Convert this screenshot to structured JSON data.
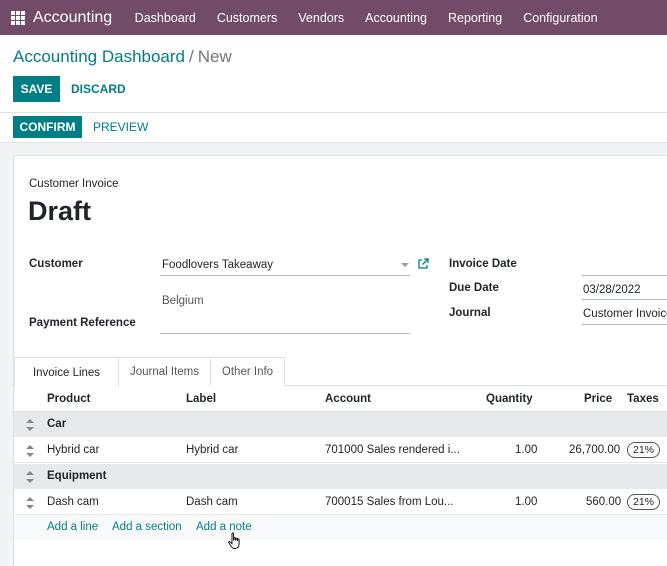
{
  "topbar": {
    "app_name": "Accounting",
    "nav": [
      "Dashboard",
      "Customers",
      "Vendors",
      "Accounting",
      "Reporting",
      "Configuration"
    ],
    "color": "#714B67"
  },
  "breadcrumb": {
    "parent": "Accounting Dashboard",
    "separator": "/",
    "current": "New"
  },
  "buttons": {
    "save": "SAVE",
    "discard": "DISCARD",
    "confirm": "CONFIRM",
    "preview": "PREVIEW"
  },
  "invoice": {
    "type": "Customer Invoice",
    "status": "Draft",
    "customer_label": "Customer",
    "customer": "Foodlovers Takeaway",
    "country": "Belgium",
    "payment_reference_label": "Payment Reference",
    "invoice_date_label": "Invoice Date",
    "due_date_label": "Due Date",
    "due_date": "03/28/2022",
    "journal_label": "Journal",
    "journal": "Customer Invoice"
  },
  "tabs": [
    "Invoice Lines",
    "Journal Items",
    "Other Info"
  ],
  "table": {
    "headers": {
      "product": "Product",
      "label": "Label",
      "account": "Account",
      "quantity": "Quantity",
      "price": "Price",
      "taxes": "Taxes"
    },
    "rows": [
      {
        "section": "Car"
      },
      {
        "product": "Hybrid car",
        "label": "Hybrid car",
        "account": "701000 Sales rendered i...",
        "quantity": "1.00",
        "price": "26,700.00",
        "tax": "21%"
      },
      {
        "section": "Equipment"
      },
      {
        "product": "Dash cam",
        "label": "Dash cam",
        "account": "700015 Sales from Lou...",
        "quantity": "1.00",
        "price": "560.00",
        "tax": "21%"
      }
    ],
    "add_links": {
      "line": "Add a line",
      "section": "Add a section",
      "note": "Add a note"
    }
  },
  "accent_color": "#017e84"
}
